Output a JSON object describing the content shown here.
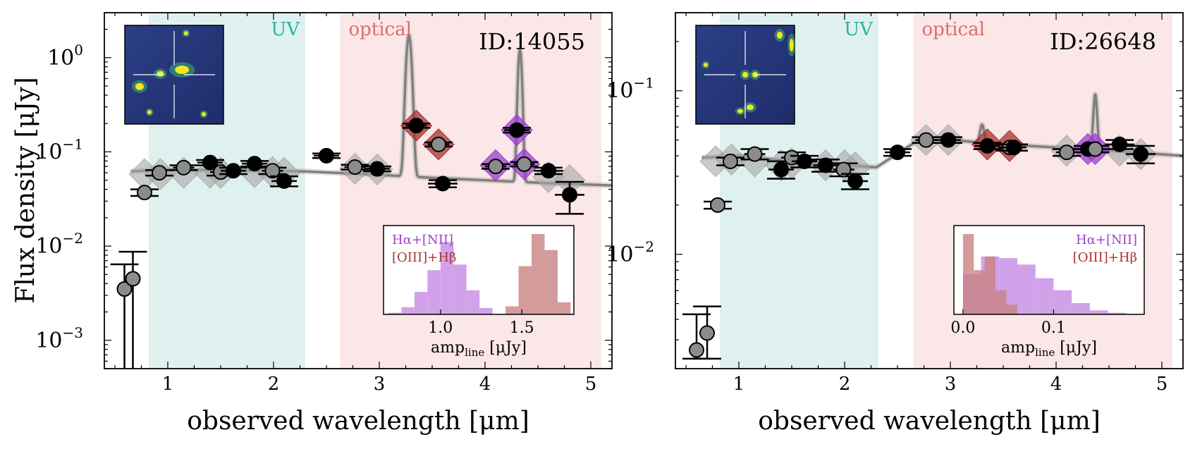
{
  "figure": {
    "ylabel": "Flux density [μJy]",
    "xlabel": "observed wavelength [μm]"
  },
  "colors": {
    "uv_band": "#dff1ee",
    "optical_band": "#fbe7e7",
    "uv_text": "#2bb3a6",
    "optical_text": "#e06b6b",
    "model": "#808080",
    "halpha": "#9b3fd0",
    "oiii": "#a83232",
    "hist_halpha": "#c58be3",
    "hist_oiii": "#c98282",
    "gray_point": "#8c8c8c",
    "black_point": "#000000",
    "diamond_gray": "#a6a6a6"
  },
  "chart_data": [
    {
      "type": "scatter",
      "title": "ID:14055",
      "xlabel": "observed wavelength [μm]",
      "ylabel": "Flux density [μJy]",
      "xlim": [
        0.4,
        5.2
      ],
      "ylim": [
        0.0005,
        3.0
      ],
      "yscale": "log",
      "xticks": [
        1,
        2,
        3,
        4,
        5
      ],
      "yticks": [
        {
          "value": 0.001,
          "base": "10",
          "exp": "−3"
        },
        {
          "value": 0.01,
          "base": "10",
          "exp": "−2"
        },
        {
          "value": 0.1,
          "base": "10",
          "exp": "−1"
        },
        {
          "value": 1,
          "base": "10",
          "exp": "0"
        }
      ],
      "bands": [
        {
          "name": "UV",
          "x0": 0.82,
          "x1": 2.3
        },
        {
          "name": "optical",
          "x0": 2.63,
          "x1": 5.1
        }
      ],
      "model_continuum": [
        [
          0.65,
          0.062
        ],
        [
          1.0,
          0.065
        ],
        [
          1.5,
          0.064
        ],
        [
          2.3,
          0.062
        ],
        [
          3.0,
          0.057
        ],
        [
          3.5,
          0.053
        ],
        [
          4.0,
          0.05
        ],
        [
          4.5,
          0.047
        ],
        [
          5.2,
          0.044
        ]
      ],
      "emission_lines": [
        {
          "center": 3.28,
          "peak": 1.7,
          "width": 0.022
        },
        {
          "center": 4.33,
          "peak": 1.2,
          "width": 0.016
        }
      ],
      "model_photometry": [
        {
          "x": 0.78,
          "y": 0.058
        },
        {
          "x": 0.93,
          "y": 0.058
        },
        {
          "x": 1.15,
          "y": 0.06
        },
        {
          "x": 1.4,
          "y": 0.06
        },
        {
          "x": 1.5,
          "y": 0.06
        },
        {
          "x": 1.82,
          "y": 0.061
        },
        {
          "x": 1.99,
          "y": 0.061
        },
        {
          "x": 2.1,
          "y": 0.06
        },
        {
          "x": 2.77,
          "y": 0.066
        },
        {
          "x": 2.98,
          "y": 0.065
        },
        {
          "x": 4.6,
          "y": 0.054
        },
        {
          "x": 4.8,
          "y": 0.05
        }
      ],
      "line_boxes": [
        {
          "x": 3.35,
          "y": 0.19,
          "line": "oiii"
        },
        {
          "x": 3.56,
          "y": 0.12,
          "line": "oiii"
        },
        {
          "x": 4.1,
          "y": 0.072,
          "line": "halpha"
        },
        {
          "x": 4.3,
          "y": 0.17,
          "line": "halpha"
        },
        {
          "x": 4.37,
          "y": 0.074,
          "line": "halpha"
        }
      ],
      "points": [
        {
          "x": 0.59,
          "y": 0.0035,
          "err": [
            0.0005,
            0.0064
          ],
          "xerr": 0.05,
          "c": "gray"
        },
        {
          "x": 0.67,
          "y": 0.0045,
          "err": [
            0.0005,
            0.0087
          ],
          "xerr": 0.05,
          "c": "gray"
        },
        {
          "x": 0.78,
          "y": 0.037,
          "err": [
            0.034,
            0.04
          ],
          "xerr": 0.06,
          "c": "gray"
        },
        {
          "x": 0.92,
          "y": 0.06,
          "err": [
            0.056,
            0.064
          ],
          "xerr": 0.06,
          "c": "gray"
        },
        {
          "x": 1.15,
          "y": 0.068,
          "err": [
            0.064,
            0.072
          ],
          "xerr": 0.1,
          "c": "gray"
        },
        {
          "x": 1.4,
          "y": 0.077,
          "err": [
            0.072,
            0.082
          ],
          "xerr": 0.12,
          "c": "black"
        },
        {
          "x": 1.5,
          "y": 0.061,
          "err": [
            0.056,
            0.066
          ],
          "xerr": 0.1,
          "c": "gray"
        },
        {
          "x": 1.62,
          "y": 0.063,
          "err": [
            0.058,
            0.068
          ],
          "xerr": 0.12,
          "c": "black"
        },
        {
          "x": 1.82,
          "y": 0.075,
          "err": [
            0.07,
            0.08
          ],
          "xerr": 0.12,
          "c": "black"
        },
        {
          "x": 1.99,
          "y": 0.063,
          "err": [
            0.058,
            0.068
          ],
          "xerr": 0.1,
          "c": "gray"
        },
        {
          "x": 2.1,
          "y": 0.049,
          "err": [
            0.043,
            0.055
          ],
          "xerr": 0.12,
          "c": "black"
        },
        {
          "x": 2.5,
          "y": 0.091,
          "err": [
            0.086,
            0.096
          ],
          "xerr": 0.12,
          "c": "black"
        },
        {
          "x": 2.77,
          "y": 0.069,
          "err": [
            0.065,
            0.073
          ],
          "xerr": 0.1,
          "c": "gray"
        },
        {
          "x": 2.98,
          "y": 0.066,
          "err": [
            0.062,
            0.07
          ],
          "xerr": 0.12,
          "c": "black"
        },
        {
          "x": 3.35,
          "y": 0.19,
          "err": [
            0.18,
            0.2
          ],
          "xerr": 0.1,
          "c": "black"
        },
        {
          "x": 3.56,
          "y": 0.12,
          "err": [
            0.114,
            0.126
          ],
          "xerr": 0.1,
          "c": "gray"
        },
        {
          "x": 3.6,
          "y": 0.046,
          "err": [
            0.042,
            0.05
          ],
          "xerr": 0.14,
          "c": "black"
        },
        {
          "x": 4.1,
          "y": 0.07,
          "err": [
            0.066,
            0.074
          ],
          "xerr": 0.1,
          "c": "gray"
        },
        {
          "x": 4.3,
          "y": 0.17,
          "err": [
            0.16,
            0.18
          ],
          "xerr": 0.12,
          "c": "black"
        },
        {
          "x": 4.37,
          "y": 0.074,
          "err": [
            0.07,
            0.078
          ],
          "xerr": 0.1,
          "c": "gray"
        },
        {
          "x": 4.6,
          "y": 0.063,
          "err": [
            0.058,
            0.068
          ],
          "xerr": 0.14,
          "c": "black"
        },
        {
          "x": 4.8,
          "y": 0.035,
          "err": [
            0.022,
            0.048
          ],
          "xerr": 0.14,
          "c": "black"
        }
      ],
      "inset": {
        "xlabel_main": "amp",
        "xlabel_sub": "line",
        "xlabel_tail": " [μJy]",
        "xlim": [
          0.65,
          1.82
        ],
        "xticks": [
          {
            "value": 1.0,
            "label": "1.0"
          },
          {
            "value": 1.5,
            "label": "1.5"
          }
        ],
        "legend_pos": "top-left",
        "legend": [
          {
            "label": "Hα+[NII]",
            "color": "halpha"
          },
          {
            "label": "[OIII]+Hβ",
            "color": "oiii"
          }
        ],
        "hist_halpha": {
          "edges": [
            0.68,
            0.76,
            0.84,
            0.92,
            1.0,
            1.08,
            1.16,
            1.24,
            1.32
          ],
          "counts": [
            0.02,
            0.09,
            0.28,
            0.55,
            0.9,
            0.62,
            0.3,
            0.08
          ]
        },
        "hist_oiii": {
          "edges": [
            1.4,
            1.48,
            1.56,
            1.64,
            1.72,
            1.8
          ],
          "counts": [
            0.1,
            0.6,
            1.0,
            0.8,
            0.15
          ]
        }
      }
    },
    {
      "type": "scatter",
      "title": "ID:26648",
      "xlabel": "observed wavelength [μm]",
      "ylabel": "",
      "xlim": [
        0.4,
        5.2
      ],
      "ylim": [
        0.002,
        0.3
      ],
      "yscale": "log",
      "xticks": [
        1,
        2,
        3,
        4,
        5
      ],
      "yticks": [
        {
          "value": 0.01,
          "base": "10",
          "exp": "−2"
        },
        {
          "value": 0.1,
          "base": "10",
          "exp": "−1"
        }
      ],
      "bands": [
        {
          "name": "UV",
          "x0": 0.82,
          "x1": 2.32
        },
        {
          "name": "optical",
          "x0": 2.65,
          "x1": 5.1
        }
      ],
      "model_continuum": [
        [
          0.65,
          0.039
        ],
        [
          1.0,
          0.04
        ],
        [
          1.5,
          0.037
        ],
        [
          2.3,
          0.034
        ],
        [
          2.7,
          0.05
        ],
        [
          3.0,
          0.05
        ],
        [
          3.5,
          0.047
        ],
        [
          4.0,
          0.045
        ],
        [
          4.5,
          0.043
        ],
        [
          5.2,
          0.04
        ]
      ],
      "emission_lines": [
        {
          "center": 3.3,
          "peak": 0.062,
          "width": 0.018
        },
        {
          "center": 4.37,
          "peak": 0.095,
          "width": 0.016
        }
      ],
      "model_photometry": [
        {
          "x": 0.78,
          "y": 0.037
        },
        {
          "x": 0.93,
          "y": 0.038
        },
        {
          "x": 1.15,
          "y": 0.037
        },
        {
          "x": 1.4,
          "y": 0.035
        },
        {
          "x": 1.5,
          "y": 0.036
        },
        {
          "x": 1.82,
          "y": 0.035
        },
        {
          "x": 2.0,
          "y": 0.035
        },
        {
          "x": 2.1,
          "y": 0.034
        },
        {
          "x": 2.77,
          "y": 0.05
        },
        {
          "x": 2.98,
          "y": 0.05
        },
        {
          "x": 4.1,
          "y": 0.043
        },
        {
          "x": 4.6,
          "y": 0.043
        },
        {
          "x": 4.8,
          "y": 0.041
        }
      ],
      "line_boxes": [
        {
          "x": 3.35,
          "y": 0.047,
          "line": "oiii"
        },
        {
          "x": 3.56,
          "y": 0.046,
          "line": "oiii"
        },
        {
          "x": 4.3,
          "y": 0.044,
          "line": "halpha"
        },
        {
          "x": 4.37,
          "y": 0.044,
          "line": "halpha"
        }
      ],
      "points": [
        {
          "x": 0.6,
          "y": 0.0026,
          "err": [
            0.0023,
            0.0043
          ],
          "xerr": 0.05,
          "c": "gray"
        },
        {
          "x": 0.7,
          "y": 0.0033,
          "err": [
            0.0023,
            0.0048
          ],
          "xerr": 0.05,
          "c": "gray"
        },
        {
          "x": 0.8,
          "y": 0.02,
          "err": [
            0.019,
            0.021
          ],
          "xerr": 0.07,
          "c": "gray"
        },
        {
          "x": 0.92,
          "y": 0.037,
          "err": [
            0.035,
            0.039
          ],
          "xerr": 0.07,
          "c": "gray"
        },
        {
          "x": 1.15,
          "y": 0.041,
          "err": [
            0.038,
            0.044
          ],
          "xerr": 0.1,
          "c": "gray"
        },
        {
          "x": 1.4,
          "y": 0.033,
          "err": [
            0.029,
            0.037
          ],
          "xerr": 0.12,
          "c": "black"
        },
        {
          "x": 1.5,
          "y": 0.039,
          "err": [
            0.036,
            0.042
          ],
          "xerr": 0.1,
          "c": "gray"
        },
        {
          "x": 1.62,
          "y": 0.037,
          "err": [
            0.034,
            0.04
          ],
          "xerr": 0.12,
          "c": "black"
        },
        {
          "x": 1.82,
          "y": 0.035,
          "err": [
            0.032,
            0.038
          ],
          "xerr": 0.12,
          "c": "black"
        },
        {
          "x": 1.99,
          "y": 0.033,
          "err": [
            0.03,
            0.036
          ],
          "xerr": 0.1,
          "c": "gray"
        },
        {
          "x": 2.1,
          "y": 0.028,
          "err": [
            0.025,
            0.031
          ],
          "xerr": 0.12,
          "c": "black"
        },
        {
          "x": 2.5,
          "y": 0.042,
          "err": [
            0.04,
            0.044
          ],
          "xerr": 0.12,
          "c": "black"
        },
        {
          "x": 2.77,
          "y": 0.05,
          "err": [
            0.048,
            0.052
          ],
          "xerr": 0.1,
          "c": "gray"
        },
        {
          "x": 2.98,
          "y": 0.05,
          "err": [
            0.048,
            0.052
          ],
          "xerr": 0.12,
          "c": "black"
        },
        {
          "x": 3.35,
          "y": 0.046,
          "err": [
            0.044,
            0.048
          ],
          "xerr": 0.12,
          "c": "black"
        },
        {
          "x": 3.56,
          "y": 0.045,
          "err": [
            0.043,
            0.047
          ],
          "xerr": 0.1,
          "c": "gray"
        },
        {
          "x": 3.6,
          "y": 0.045,
          "err": [
            0.043,
            0.047
          ],
          "xerr": 0.12,
          "c": "black"
        },
        {
          "x": 4.1,
          "y": 0.042,
          "err": [
            0.04,
            0.044
          ],
          "xerr": 0.1,
          "c": "gray"
        },
        {
          "x": 4.3,
          "y": 0.044,
          "err": [
            0.042,
            0.046
          ],
          "xerr": 0.14,
          "c": "black"
        },
        {
          "x": 4.37,
          "y": 0.044,
          "err": [
            0.042,
            0.046
          ],
          "xerr": 0.1,
          "c": "gray"
        },
        {
          "x": 4.6,
          "y": 0.047,
          "err": [
            0.044,
            0.05
          ],
          "xerr": 0.14,
          "c": "black"
        },
        {
          "x": 4.8,
          "y": 0.041,
          "err": [
            0.036,
            0.046
          ],
          "xerr": 0.14,
          "c": "black"
        }
      ],
      "inset": {
        "xlabel_main": "amp",
        "xlabel_sub": "line",
        "xlabel_tail": " [μJy]",
        "xlim": [
          -0.01,
          0.2
        ],
        "xticks": [
          {
            "value": 0.0,
            "label": "0.0"
          },
          {
            "value": 0.1,
            "label": "0.1"
          }
        ],
        "legend_pos": "top-right",
        "legend": [
          {
            "label": "Hα+[NII]",
            "color": "halpha"
          },
          {
            "label": "[OIII]+Hβ",
            "color": "oiii"
          }
        ],
        "hist_halpha": {
          "edges": [
            0.0,
            0.02,
            0.04,
            0.06,
            0.08,
            0.1,
            0.12,
            0.14,
            0.16,
            0.18
          ],
          "counts": [
            0.5,
            0.72,
            0.7,
            0.62,
            0.45,
            0.3,
            0.14,
            0.05,
            0.02
          ]
        },
        "hist_oiii": {
          "edges": [
            0.0,
            0.012,
            0.024,
            0.036,
            0.048,
            0.06
          ],
          "counts": [
            1.0,
            0.55,
            0.72,
            0.3,
            0.12
          ]
        }
      }
    }
  ]
}
